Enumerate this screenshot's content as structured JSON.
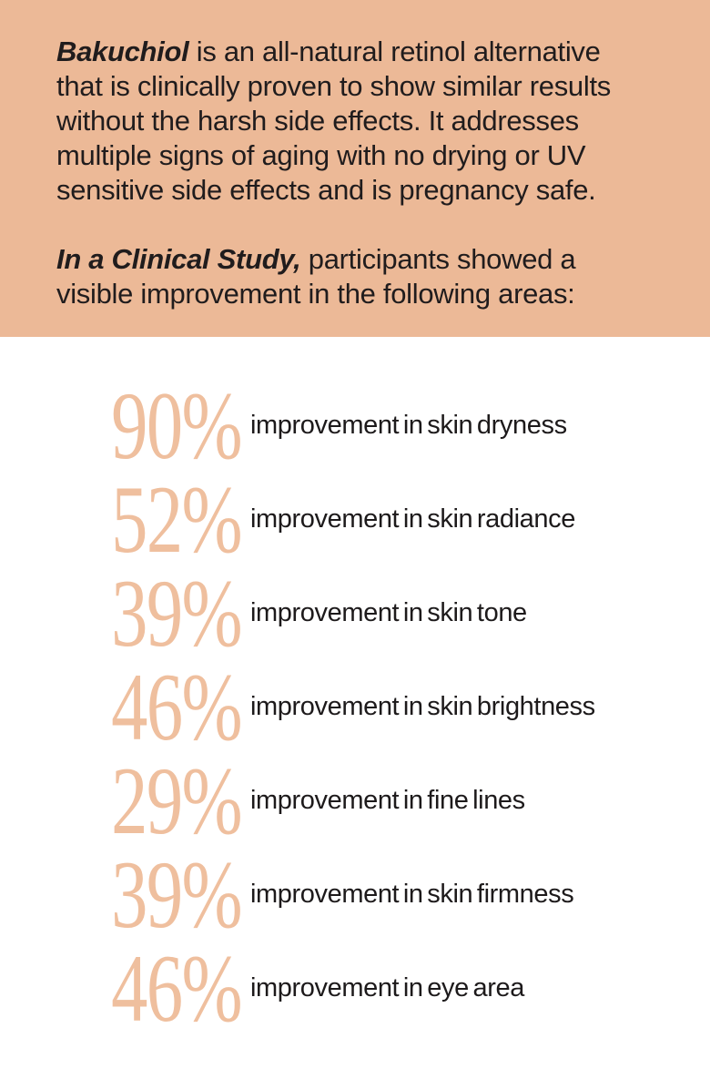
{
  "page": {
    "background_color": "#ffffff"
  },
  "header": {
    "background_color": "#ecb997",
    "text_color": "#201c1d",
    "intro": {
      "lead": "Bakuchiol",
      "rest": " is an all-natural retinol alternative\nthat is clinically proven to show similar results\nwithout the harsh side effects. It addresses\nmultiple signs of aging with no drying or UV\nsensitive side effects and is pregnancy safe."
    },
    "study": {
      "lead": "In a Clinical Study,",
      "rest": " participants showed a\nvisible improvement in the following areas:"
    }
  },
  "stats": {
    "accent_color": "#efbf9e",
    "items": [
      {
        "value": "90%",
        "label": "improvement in skin dryness"
      },
      {
        "value": "52%",
        "label": "improvement in skin radiance"
      },
      {
        "value": "39%",
        "label": "improvement in skin tone"
      },
      {
        "value": "46%",
        "label": "improvement in skin brightness"
      },
      {
        "value": "29%",
        "label": "improvement in fine lines"
      },
      {
        "value": "39%",
        "label": "improvement in skin firmness"
      },
      {
        "value": "46%",
        "label": "improvement in eye area"
      }
    ]
  },
  "chart_data": {
    "type": "table",
    "title": "In a Clinical Study, participants showed a visible improvement in the following areas:",
    "categories": [
      "skin dryness",
      "skin radiance",
      "skin tone",
      "skin brightness",
      "fine lines",
      "skin firmness",
      "eye area"
    ],
    "values": [
      90,
      52,
      39,
      46,
      29,
      39,
      46
    ],
    "unit": "%"
  }
}
